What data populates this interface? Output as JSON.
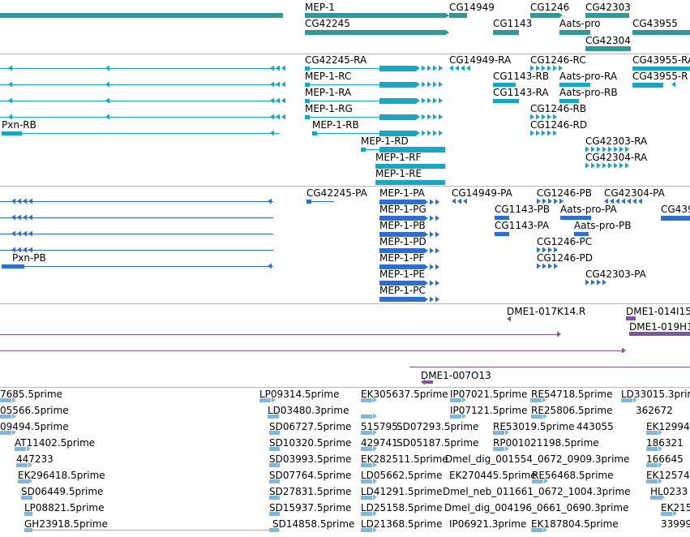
{
  "colors": {
    "gene": "#2e9a96",
    "mrna": "#16a6c9",
    "cds": "#2a6fd6",
    "bac": "#7a55a8",
    "est": "#7ab8e6",
    "border": "#b8b8b8"
  },
  "tracks": [
    {
      "key": "genes",
      "color_key": "gene",
      "labels": [
        {
          "id": "gene-mep1",
          "text": "MEP-1"
        },
        {
          "id": "gene-cg42245",
          "text": "CG42245"
        },
        {
          "id": "gene-cg14949",
          "text": "CG14949"
        },
        {
          "id": "gene-cg1143",
          "text": "CG1143"
        },
        {
          "id": "gene-cg1246",
          "text": "CG1246"
        },
        {
          "id": "gene-aats-pro",
          "text": "Aats-pro"
        },
        {
          "id": "gene-cg42303",
          "text": "CG42303"
        },
        {
          "id": "gene-cg43955",
          "text": "CG43955"
        },
        {
          "id": "gene-cg42304",
          "text": "CG42304"
        }
      ]
    },
    {
      "key": "transcripts",
      "color_key": "mrna",
      "labels": [
        {
          "id": "tx-pxn-rb",
          "text": "Pxn-RB"
        },
        {
          "id": "tx-cg42245-ra",
          "text": "CG42245-RA"
        },
        {
          "id": "tx-mep1-rc",
          "text": "MEP-1-RC"
        },
        {
          "id": "tx-mep1-ra",
          "text": "MEP-1-RA"
        },
        {
          "id": "tx-mep1-rg",
          "text": "MEP-1-RG"
        },
        {
          "id": "tx-mep1-rb",
          "text": "MEP-1-RB"
        },
        {
          "id": "tx-mep1-rd",
          "text": "MEP-1-RD"
        },
        {
          "id": "tx-mep1-rf",
          "text": "MEP-1-RF"
        },
        {
          "id": "tx-mep1-re",
          "text": "MEP-1-RE"
        },
        {
          "id": "tx-cg14949-ra",
          "text": "CG14949-RA"
        },
        {
          "id": "tx-cg1143-rb",
          "text": "CG1143-RB"
        },
        {
          "id": "tx-cg1143-ra",
          "text": "CG1143-RA"
        },
        {
          "id": "tx-cg1246-rc",
          "text": "CG1246-RC"
        },
        {
          "id": "tx-aats-pro-ra",
          "text": "Aats-pro-RA"
        },
        {
          "id": "tx-aats-pro-rb",
          "text": "Aats-pro-RB"
        },
        {
          "id": "tx-cg1246-rb",
          "text": "CG1246-RB"
        },
        {
          "id": "tx-cg1246-rd",
          "text": "CG1246-RD"
        },
        {
          "id": "tx-cg42303-ra",
          "text": "CG42303-RA"
        },
        {
          "id": "tx-cg42304-ra",
          "text": "CG42304-RA"
        },
        {
          "id": "tx-cg43955-ra",
          "text": "CG43955-RA"
        },
        {
          "id": "tx-cg43955-r2",
          "text": "CG43955-R"
        }
      ]
    },
    {
      "key": "proteins",
      "color_key": "cds",
      "labels": [
        {
          "id": "pr-pxn-pb",
          "text": "Pxn-PB"
        },
        {
          "id": "pr-cg42245-pa",
          "text": "CG42245-PA"
        },
        {
          "id": "pr-mep1-pa",
          "text": "MEP-1-PA"
        },
        {
          "id": "pr-mep1-pg",
          "text": "MEP-1-PG"
        },
        {
          "id": "pr-mep1-pb",
          "text": "MEP-1-PB"
        },
        {
          "id": "pr-mep1-pd",
          "text": "MEP-1-PD"
        },
        {
          "id": "pr-mep1-pf",
          "text": "MEP-1-PF"
        },
        {
          "id": "pr-mep1-pe",
          "text": "MEP-1-PE"
        },
        {
          "id": "pr-mep1-pc",
          "text": "MEP-1-PC"
        },
        {
          "id": "pr-cg14949-pa",
          "text": "CG14949-PA"
        },
        {
          "id": "pr-cg1143-pb",
          "text": "CG1143-PB"
        },
        {
          "id": "pr-cg1143-pa",
          "text": "CG1143-PA"
        },
        {
          "id": "pr-cg1246-pb",
          "text": "CG1246-PB"
        },
        {
          "id": "pr-aats-pro-pa",
          "text": "Aats-pro-PA"
        },
        {
          "id": "pr-aats-pro-pb",
          "text": "Aats-pro-PB"
        },
        {
          "id": "pr-cg1246-pc",
          "text": "CG1246-PC"
        },
        {
          "id": "pr-cg1246-pd",
          "text": "CG1246-PD"
        },
        {
          "id": "pr-cg42303-pa",
          "text": "CG42303-PA"
        },
        {
          "id": "pr-cg42304-pa",
          "text": "CG42304-PA"
        },
        {
          "id": "pr-cg439",
          "text": "CG439"
        }
      ]
    },
    {
      "key": "bac",
      "color_key": "bac",
      "labels": [
        {
          "id": "bac-017k14",
          "text": "DME1-017K14.R"
        },
        {
          "id": "bac-014i15",
          "text": "DME1-014I15"
        },
        {
          "id": "bac-019h1",
          "text": "DME1-019H1"
        },
        {
          "id": "bac-007o13",
          "text": "DME1-007O13"
        }
      ]
    },
    {
      "key": "ests",
      "color_key": "est",
      "labels": [
        {
          "id": "est-1",
          "text": "7685.5prime"
        },
        {
          "id": "est-2",
          "text": "05566.5prime"
        },
        {
          "id": "est-3",
          "text": "09494.5prime"
        },
        {
          "id": "est-4",
          "text": "AT11402.5prime"
        },
        {
          "id": "est-5",
          "text": "447233"
        },
        {
          "id": "est-6",
          "text": "EK296418.5prime"
        },
        {
          "id": "est-7",
          "text": "SD06449.5prime"
        },
        {
          "id": "est-8",
          "text": "LP08821.5prime"
        },
        {
          "id": "est-9",
          "text": "GH23918.5prime"
        },
        {
          "id": "est-10",
          "text": "LP09314.5prime"
        },
        {
          "id": "est-11",
          "text": "LD03480.3prime"
        },
        {
          "id": "est-12",
          "text": "SD06727.5prime"
        },
        {
          "id": "est-13",
          "text": "SD10320.5prime"
        },
        {
          "id": "est-14",
          "text": "SD03993.5prime"
        },
        {
          "id": "est-15",
          "text": "SD07764.5prime"
        },
        {
          "id": "est-16",
          "text": "SD27831.5prime"
        },
        {
          "id": "est-17",
          "text": "SD15937.5prime"
        },
        {
          "id": "est-18",
          "text": "SD14858.5prime"
        },
        {
          "id": "est-19",
          "text": "EK305637.5prime"
        },
        {
          "id": "est-20",
          "text": "515795"
        },
        {
          "id": "est-21",
          "text": "SD07293.5prime"
        },
        {
          "id": "est-22",
          "text": "429741"
        },
        {
          "id": "est-23",
          "text": "SD05187.5prime"
        },
        {
          "id": "est-24",
          "text": "EK282511.5prime"
        },
        {
          "id": "est-25",
          "text": "LD05662.5prime"
        },
        {
          "id": "est-26",
          "text": "LD41291.5prime"
        },
        {
          "id": "est-27",
          "text": "LD25158.5prime"
        },
        {
          "id": "est-28",
          "text": "LD21368.5prime"
        },
        {
          "id": "est-29",
          "text": "IP07021.5prime"
        },
        {
          "id": "est-30",
          "text": "IP07121.5prime"
        },
        {
          "id": "est-31",
          "text": "EK270445.5prime"
        },
        {
          "id": "est-32",
          "text": "Dmel_dig_001554_0672_0909.3prime"
        },
        {
          "id": "est-33",
          "text": "Dmel_neb_011661_0672_1004.3prime"
        },
        {
          "id": "est-34",
          "text": "Dmel_dig_004196_0661_0690.3prime"
        },
        {
          "id": "est-35",
          "text": "IP06921.3prime"
        },
        {
          "id": "est-36",
          "text": "RE54718.5prime"
        },
        {
          "id": "est-37",
          "text": "RE25806.5prime"
        },
        {
          "id": "est-38",
          "text": "RE53019.5prime"
        },
        {
          "id": "est-39",
          "text": "443055"
        },
        {
          "id": "est-40",
          "text": "RP001021198.5prime"
        },
        {
          "id": "est-41",
          "text": "RE56468.5prime"
        },
        {
          "id": "est-42",
          "text": "EK187804.5prime"
        },
        {
          "id": "est-43",
          "text": "LD33015.3prime"
        },
        {
          "id": "est-44",
          "text": "362672"
        },
        {
          "id": "est-45",
          "text": "EK12994"
        },
        {
          "id": "est-46",
          "text": "186321"
        },
        {
          "id": "est-47",
          "text": "166645"
        },
        {
          "id": "est-48",
          "text": "EK12574"
        },
        {
          "id": "est-49",
          "text": "HL0233"
        },
        {
          "id": "est-50",
          "text": "EK215"
        },
        {
          "id": "est-51",
          "text": "33999"
        }
      ]
    }
  ]
}
